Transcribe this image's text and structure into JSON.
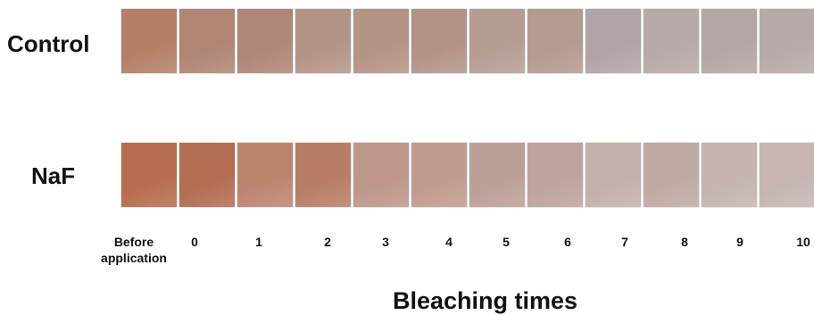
{
  "rows": [
    {
      "label": "Control"
    },
    {
      "label": "NaF"
    }
  ],
  "columns": [
    "Before application",
    "0",
    "1",
    "2",
    "3",
    "4",
    "5",
    "6",
    "7",
    "8",
    "9",
    "10"
  ],
  "x_title": "Bleaching times"
}
